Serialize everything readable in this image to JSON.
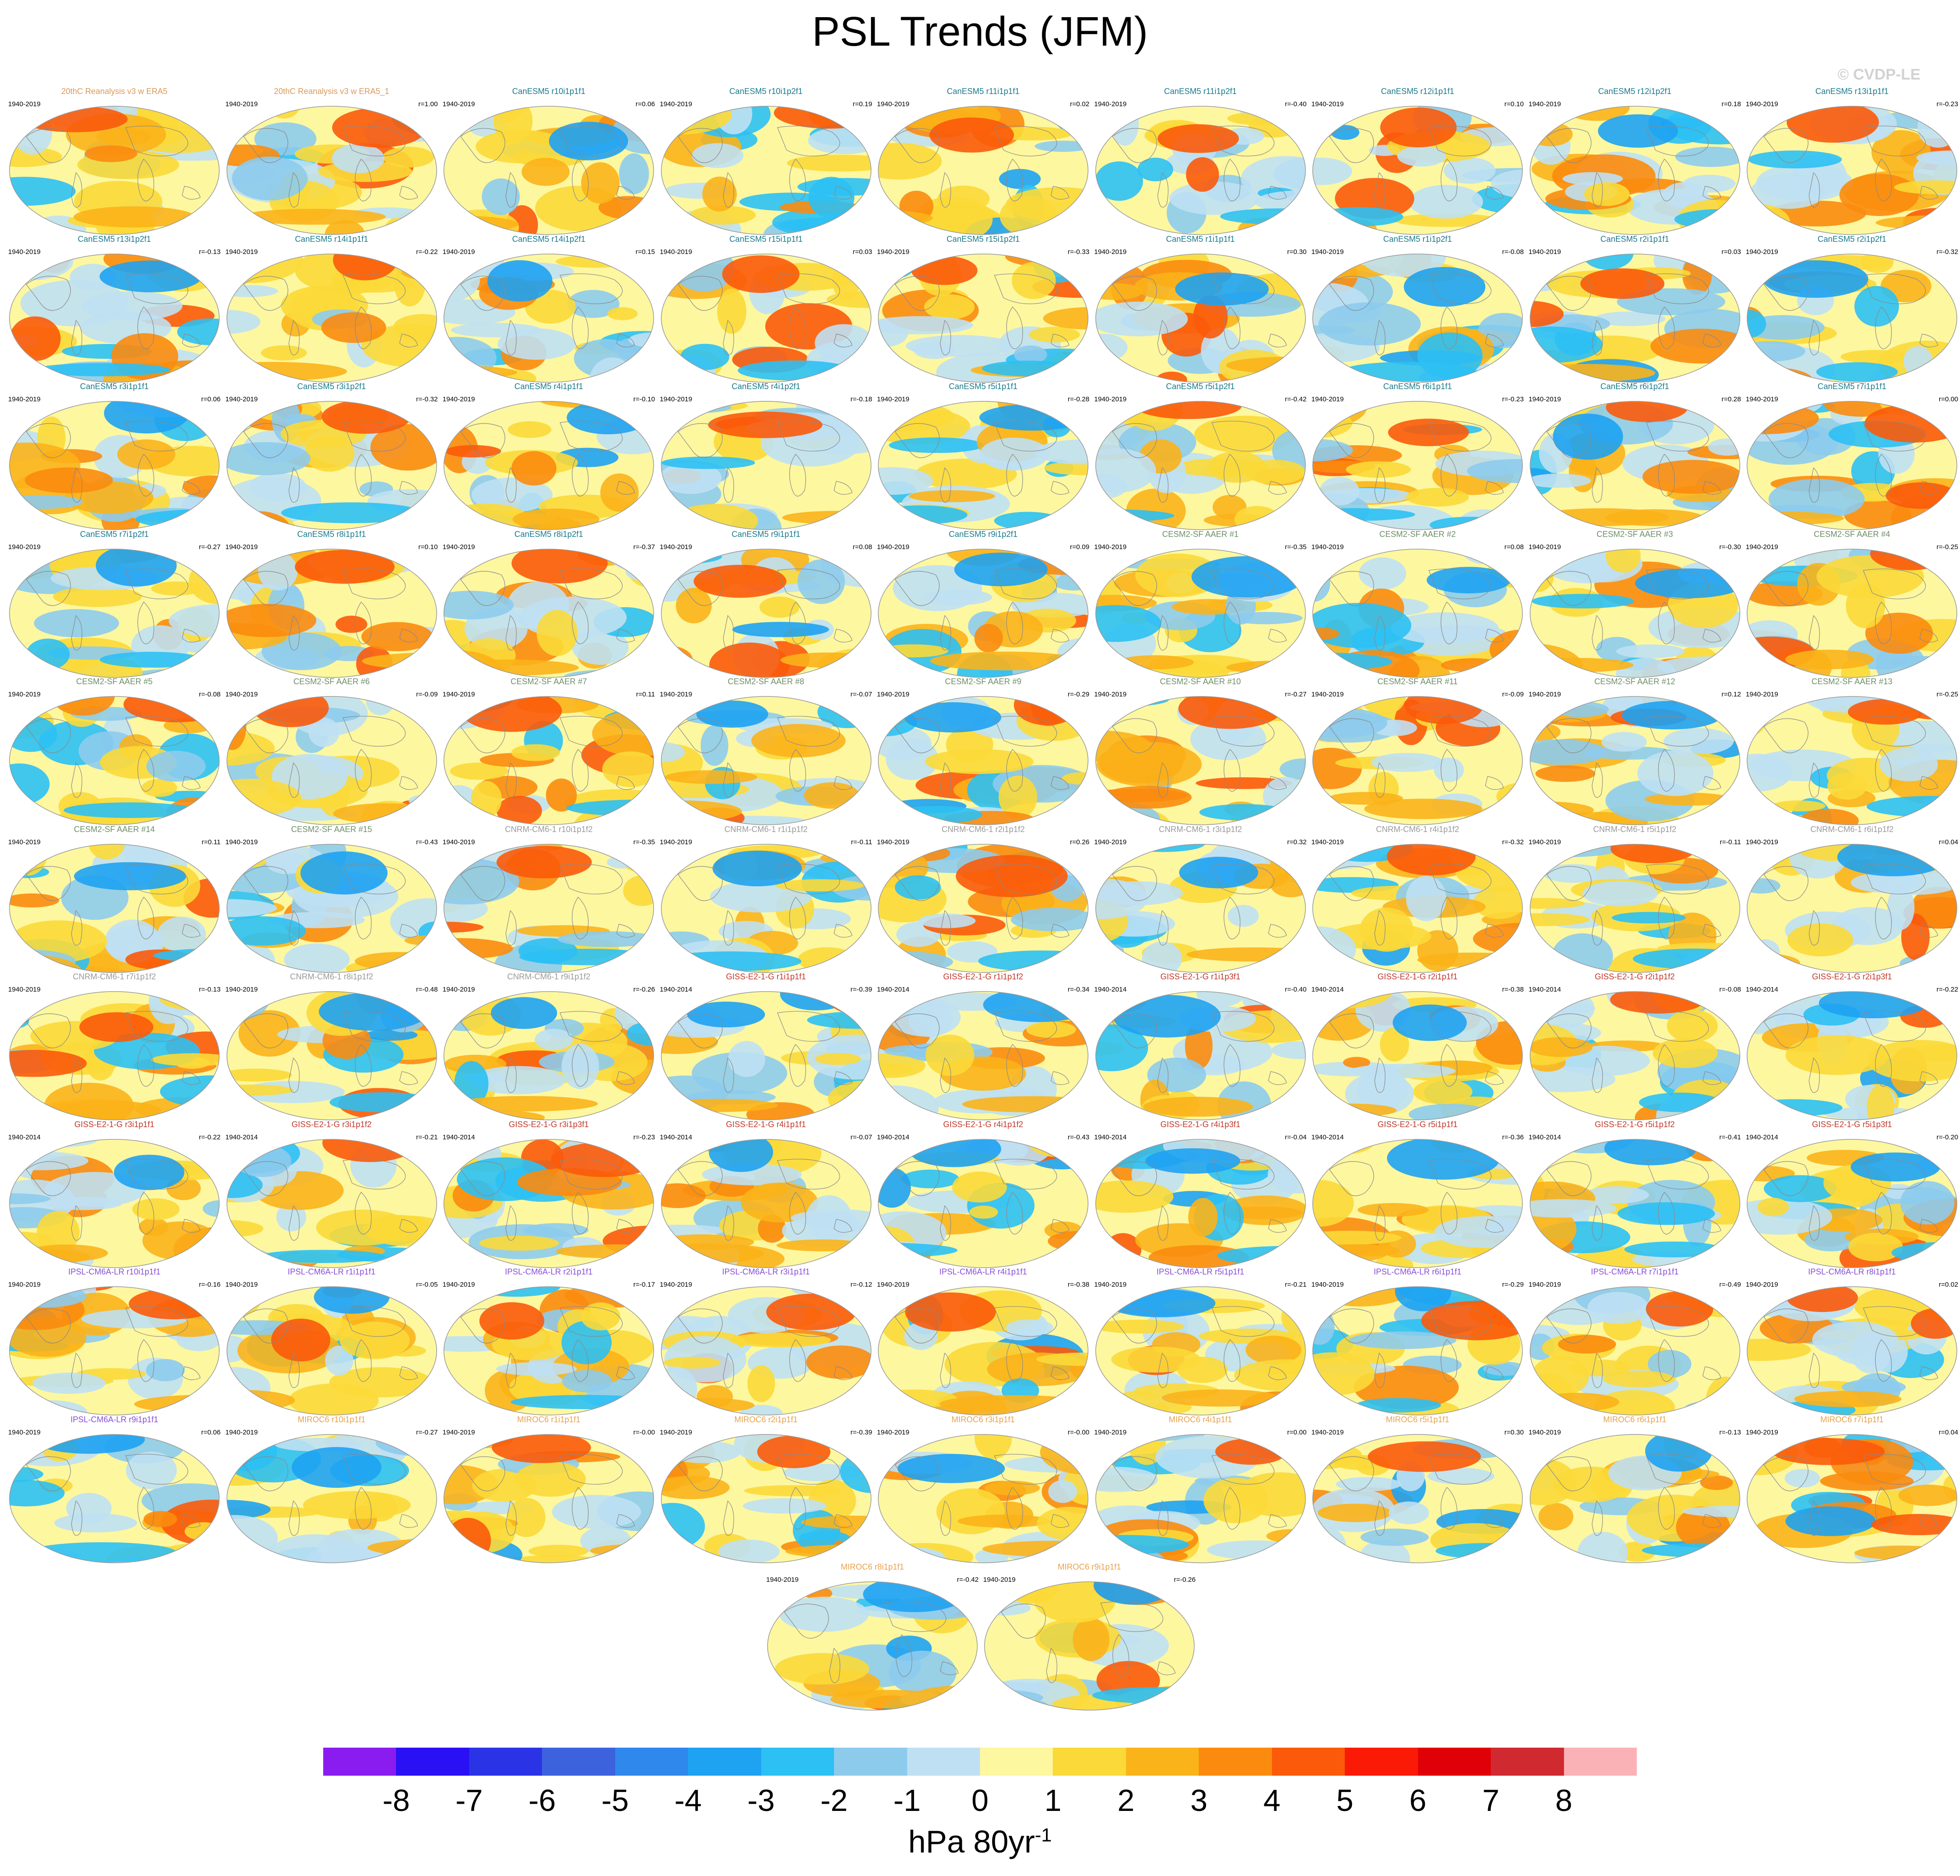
{
  "title": "PSL Trends (JFM)",
  "credit": "© CVDP-LE",
  "units_prefix": "hPa 80yr",
  "units_exponent": "-1",
  "group_colors": {
    "20thC": "#d99a5a",
    "CanESM5": "#1a7a8c",
    "CESM2": "#6f8f67",
    "CNRM": "#9a9a9a",
    "GISS": "#c0392b",
    "IPSL": "#8a4fd6",
    "MIROC6": "#e8a24c"
  },
  "colorbar": {
    "ticks": [
      "-8",
      "-7",
      "-6",
      "-5",
      "-4",
      "-3",
      "-2",
      "-1",
      "0",
      "1",
      "2",
      "3",
      "4",
      "5",
      "6",
      "7",
      "8"
    ],
    "colors": [
      "#8a1cf0",
      "#2a10f5",
      "#2a34e6",
      "#3c62de",
      "#2f88ec",
      "#1ea2f2",
      "#2cc0f4",
      "#8dcbed",
      "#bfe0f3",
      "#fdf7a0",
      "#fbd938",
      "#fbb31a",
      "#fb8b0e",
      "#fb5a0a",
      "#fb1a06",
      "#e00008",
      "#d02a30",
      "#fbb2b6"
    ]
  },
  "chart_data": {
    "type": "heatmap",
    "title": "PSL Trends (JFM)",
    "colorbar_label": "hPa 80yr-1",
    "levels": [
      -8,
      -7,
      -6,
      -5,
      -4,
      -3,
      -2,
      -1,
      0,
      1,
      2,
      3,
      4,
      5,
      6,
      7,
      8
    ],
    "panels": [
      {
        "name": "20thC Reanalysis v3 w ERA5",
        "period": "1940-2019",
        "r": "",
        "group": "20thC"
      },
      {
        "name": "20thC Reanalysis v3 w ERA5_1",
        "period": "1940-2019",
        "r": "r=1.00",
        "group": "20thC"
      },
      {
        "name": "CanESM5 r10i1p1f1",
        "period": "1940-2019",
        "r": "r=0.06",
        "group": "CanESM5"
      },
      {
        "name": "CanESM5 r10i1p2f1",
        "period": "1940-2019",
        "r": "r=0.19",
        "group": "CanESM5"
      },
      {
        "name": "CanESM5 r11i1p1f1",
        "period": "1940-2019",
        "r": "r=0.02",
        "group": "CanESM5"
      },
      {
        "name": "CanESM5 r11i1p2f1",
        "period": "1940-2019",
        "r": "r=-0.40",
        "group": "CanESM5"
      },
      {
        "name": "CanESM5 r12i1p1f1",
        "period": "1940-2019",
        "r": "r=0.10",
        "group": "CanESM5"
      },
      {
        "name": "CanESM5 r12i1p2f1",
        "period": "1940-2019",
        "r": "r=0.18",
        "group": "CanESM5"
      },
      {
        "name": "CanESM5 r13i1p1f1",
        "period": "1940-2019",
        "r": "r=-0.23",
        "group": "CanESM5"
      },
      {
        "name": "CanESM5 r13i1p2f1",
        "period": "1940-2019",
        "r": "r=-0.13",
        "group": "CanESM5"
      },
      {
        "name": "CanESM5 r14i1p1f1",
        "period": "1940-2019",
        "r": "r=-0.22",
        "group": "CanESM5"
      },
      {
        "name": "CanESM5 r14i1p2f1",
        "period": "1940-2019",
        "r": "r=0.15",
        "group": "CanESM5"
      },
      {
        "name": "CanESM5 r15i1p1f1",
        "period": "1940-2019",
        "r": "r=0.03",
        "group": "CanESM5"
      },
      {
        "name": "CanESM5 r15i1p2f1",
        "period": "1940-2019",
        "r": "r=-0.33",
        "group": "CanESM5"
      },
      {
        "name": "CanESM5 r1i1p1f1",
        "period": "1940-2019",
        "r": "r=0.30",
        "group": "CanESM5"
      },
      {
        "name": "CanESM5 r1i1p2f1",
        "period": "1940-2019",
        "r": "r=-0.08",
        "group": "CanESM5"
      },
      {
        "name": "CanESM5 r2i1p1f1",
        "period": "1940-2019",
        "r": "r=0.03",
        "group": "CanESM5"
      },
      {
        "name": "CanESM5 r2i1p2f1",
        "period": "1940-2019",
        "r": "r=-0.32",
        "group": "CanESM5"
      },
      {
        "name": "CanESM5 r3i1p1f1",
        "period": "1940-2019",
        "r": "r=0.06",
        "group": "CanESM5"
      },
      {
        "name": "CanESM5 r3i1p2f1",
        "period": "1940-2019",
        "r": "r=-0.32",
        "group": "CanESM5"
      },
      {
        "name": "CanESM5 r4i1p1f1",
        "period": "1940-2019",
        "r": "r=-0.10",
        "group": "CanESM5"
      },
      {
        "name": "CanESM5 r4i1p2f1",
        "period": "1940-2019",
        "r": "r=-0.18",
        "group": "CanESM5"
      },
      {
        "name": "CanESM5 r5i1p1f1",
        "period": "1940-2019",
        "r": "r=-0.28",
        "group": "CanESM5"
      },
      {
        "name": "CanESM5 r5i1p2f1",
        "period": "1940-2019",
        "r": "r=-0.42",
        "group": "CanESM5"
      },
      {
        "name": "CanESM5 r6i1p1f1",
        "period": "1940-2019",
        "r": "r=-0.23",
        "group": "CanESM5"
      },
      {
        "name": "CanESM5 r6i1p2f1",
        "period": "1940-2019",
        "r": "r=0.28",
        "group": "CanESM5"
      },
      {
        "name": "CanESM5 r7i1p1f1",
        "period": "1940-2019",
        "r": "r=0.00",
        "group": "CanESM5"
      },
      {
        "name": "CanESM5 r7i1p2f1",
        "period": "1940-2019",
        "r": "r=-0.27",
        "group": "CanESM5"
      },
      {
        "name": "CanESM5 r8i1p1f1",
        "period": "1940-2019",
        "r": "r=0.10",
        "group": "CanESM5"
      },
      {
        "name": "CanESM5 r8i1p2f1",
        "period": "1940-2019",
        "r": "r=-0.37",
        "group": "CanESM5"
      },
      {
        "name": "CanESM5 r9i1p1f1",
        "period": "1940-2019",
        "r": "r=0.08",
        "group": "CanESM5"
      },
      {
        "name": "CanESM5 r9i1p2f1",
        "period": "1940-2019",
        "r": "r=0.09",
        "group": "CanESM5"
      },
      {
        "name": "CESM2-SF AAER #1",
        "period": "1940-2019",
        "r": "r=-0.35",
        "group": "CESM2"
      },
      {
        "name": "CESM2-SF AAER #2",
        "period": "1940-2019",
        "r": "r=0.08",
        "group": "CESM2"
      },
      {
        "name": "CESM2-SF AAER #3",
        "period": "1940-2019",
        "r": "r=-0.30",
        "group": "CESM2"
      },
      {
        "name": "CESM2-SF AAER #4",
        "period": "1940-2019",
        "r": "r=-0.25",
        "group": "CESM2"
      },
      {
        "name": "CESM2-SF AAER #5",
        "period": "1940-2019",
        "r": "r=-0.08",
        "group": "CESM2"
      },
      {
        "name": "CESM2-SF AAER #6",
        "period": "1940-2019",
        "r": "r=-0.09",
        "group": "CESM2"
      },
      {
        "name": "CESM2-SF AAER #7",
        "period": "1940-2019",
        "r": "r=0.11",
        "group": "CESM2"
      },
      {
        "name": "CESM2-SF AAER #8",
        "period": "1940-2019",
        "r": "r=-0.07",
        "group": "CESM2"
      },
      {
        "name": "CESM2-SF AAER #9",
        "period": "1940-2019",
        "r": "r=-0.29",
        "group": "CESM2"
      },
      {
        "name": "CESM2-SF AAER #10",
        "period": "1940-2019",
        "r": "r=-0.27",
        "group": "CESM2"
      },
      {
        "name": "CESM2-SF AAER #11",
        "period": "1940-2019",
        "r": "r=-0.09",
        "group": "CESM2"
      },
      {
        "name": "CESM2-SF AAER #12",
        "period": "1940-2019",
        "r": "r=0.12",
        "group": "CESM2"
      },
      {
        "name": "CESM2-SF AAER #13",
        "period": "1940-2019",
        "r": "r=-0.25",
        "group": "CESM2"
      },
      {
        "name": "CESM2-SF AAER #14",
        "period": "1940-2019",
        "r": "r=0.11",
        "group": "CESM2"
      },
      {
        "name": "CESM2-SF AAER #15",
        "period": "1940-2019",
        "r": "r=-0.43",
        "group": "CESM2"
      },
      {
        "name": "CNRM-CM6-1 r10i1p1f2",
        "period": "1940-2019",
        "r": "r=-0.35",
        "group": "CNRM"
      },
      {
        "name": "CNRM-CM6-1 r1i1p1f2",
        "period": "1940-2019",
        "r": "r=-0.11",
        "group": "CNRM"
      },
      {
        "name": "CNRM-CM6-1 r2i1p1f2",
        "period": "1940-2019",
        "r": "r=0.26",
        "group": "CNRM"
      },
      {
        "name": "CNRM-CM6-1 r3i1p1f2",
        "period": "1940-2019",
        "r": "r=0.32",
        "group": "CNRM"
      },
      {
        "name": "CNRM-CM6-1 r4i1p1f2",
        "period": "1940-2019",
        "r": "r=-0.32",
        "group": "CNRM"
      },
      {
        "name": "CNRM-CM6-1 r5i1p1f2",
        "period": "1940-2019",
        "r": "r=-0.11",
        "group": "CNRM"
      },
      {
        "name": "CNRM-CM6-1 r6i1p1f2",
        "period": "1940-2019",
        "r": "r=0.04",
        "group": "CNRM"
      },
      {
        "name": "CNRM-CM6-1 r7i1p1f2",
        "period": "1940-2019",
        "r": "r=-0.13",
        "group": "CNRM"
      },
      {
        "name": "CNRM-CM6-1 r8i1p1f2",
        "period": "1940-2019",
        "r": "r=-0.48",
        "group": "CNRM"
      },
      {
        "name": "CNRM-CM6-1 r9i1p1f2",
        "period": "1940-2019",
        "r": "r=-0.26",
        "group": "CNRM"
      },
      {
        "name": "GISS-E2-1-G r1i1p1f1",
        "period": "1940-2014",
        "r": "r=-0.39",
        "group": "GISS"
      },
      {
        "name": "GISS-E2-1-G r1i1p1f2",
        "period": "1940-2014",
        "r": "r=-0.34",
        "group": "GISS"
      },
      {
        "name": "GISS-E2-1-G r1i1p3f1",
        "period": "1940-2014",
        "r": "r=-0.40",
        "group": "GISS"
      },
      {
        "name": "GISS-E2-1-G r2i1p1f1",
        "period": "1940-2014",
        "r": "r=-0.38",
        "group": "GISS"
      },
      {
        "name": "GISS-E2-1-G r2i1p1f2",
        "period": "1940-2014",
        "r": "r=-0.08",
        "group": "GISS"
      },
      {
        "name": "GISS-E2-1-G r2i1p3f1",
        "period": "1940-2014",
        "r": "r=-0.22",
        "group": "GISS"
      },
      {
        "name": "GISS-E2-1-G r3i1p1f1",
        "period": "1940-2014",
        "r": "r=-0.22",
        "group": "GISS"
      },
      {
        "name": "GISS-E2-1-G r3i1p1f2",
        "period": "1940-2014",
        "r": "r=-0.21",
        "group": "GISS"
      },
      {
        "name": "GISS-E2-1-G r3i1p3f1",
        "period": "1940-2014",
        "r": "r=-0.23",
        "group": "GISS"
      },
      {
        "name": "GISS-E2-1-G r4i1p1f1",
        "period": "1940-2014",
        "r": "r=-0.07",
        "group": "GISS"
      },
      {
        "name": "GISS-E2-1-G r4i1p1f2",
        "period": "1940-2014",
        "r": "r=-0.43",
        "group": "GISS"
      },
      {
        "name": "GISS-E2-1-G r4i1p3f1",
        "period": "1940-2014",
        "r": "r=-0.04",
        "group": "GISS"
      },
      {
        "name": "GISS-E2-1-G r5i1p1f1",
        "period": "1940-2014",
        "r": "r=-0.36",
        "group": "GISS"
      },
      {
        "name": "GISS-E2-1-G r5i1p1f2",
        "period": "1940-2014",
        "r": "r=-0.41",
        "group": "GISS"
      },
      {
        "name": "GISS-E2-1-G r5i1p3f1",
        "period": "1940-2014",
        "r": "r=-0.20",
        "group": "GISS"
      },
      {
        "name": "IPSL-CM6A-LR r10i1p1f1",
        "period": "1940-2019",
        "r": "r=-0.16",
        "group": "IPSL"
      },
      {
        "name": "IPSL-CM6A-LR r1i1p1f1",
        "period": "1940-2019",
        "r": "r=-0.05",
        "group": "IPSL"
      },
      {
        "name": "IPSL-CM6A-LR r2i1p1f1",
        "period": "1940-2019",
        "r": "r=-0.17",
        "group": "IPSL"
      },
      {
        "name": "IPSL-CM6A-LR r3i1p1f1",
        "period": "1940-2019",
        "r": "r=-0.12",
        "group": "IPSL"
      },
      {
        "name": "IPSL-CM6A-LR r4i1p1f1",
        "period": "1940-2019",
        "r": "r=-0.38",
        "group": "IPSL"
      },
      {
        "name": "IPSL-CM6A-LR r5i1p1f1",
        "period": "1940-2019",
        "r": "r=-0.21",
        "group": "IPSL"
      },
      {
        "name": "IPSL-CM6A-LR r6i1p1f1",
        "period": "1940-2019",
        "r": "r=-0.29",
        "group": "IPSL"
      },
      {
        "name": "IPSL-CM6A-LR r7i1p1f1",
        "period": "1940-2019",
        "r": "r=-0.49",
        "group": "IPSL"
      },
      {
        "name": "IPSL-CM6A-LR r8i1p1f1",
        "period": "1940-2019",
        "r": "r=0.02",
        "group": "IPSL"
      },
      {
        "name": "IPSL-CM6A-LR r9i1p1f1",
        "period": "1940-2019",
        "r": "r=0.06",
        "group": "IPSL"
      },
      {
        "name": "MIROC6 r10i1p1f1",
        "period": "1940-2019",
        "r": "r=-0.27",
        "group": "MIROC6"
      },
      {
        "name": "MIROC6 r1i1p1f1",
        "period": "1940-2019",
        "r": "r=-0.00",
        "group": "MIROC6"
      },
      {
        "name": "MIROC6 r2i1p1f1",
        "period": "1940-2019",
        "r": "r=-0.39",
        "group": "MIROC6"
      },
      {
        "name": "MIROC6 r3i1p1f1",
        "period": "1940-2019",
        "r": "r=-0.00",
        "group": "MIROC6"
      },
      {
        "name": "MIROC6 r4i1p1f1",
        "period": "1940-2019",
        "r": "r=0.00",
        "group": "MIROC6"
      },
      {
        "name": "MIROC6 r5i1p1f1",
        "period": "1940-2019",
        "r": "r=0.30",
        "group": "MIROC6"
      },
      {
        "name": "MIROC6 r6i1p1f1",
        "period": "1940-2019",
        "r": "r=-0.13",
        "group": "MIROC6"
      },
      {
        "name": "MIROC6 r7i1p1f1",
        "period": "1940-2019",
        "r": "r=0.04",
        "group": "MIROC6"
      },
      {
        "name": "MIROC6 r8i1p1f1",
        "period": "1940-2019",
        "r": "r=-0.42",
        "group": "MIROC6"
      },
      {
        "name": "MIROC6 r9i1p1f1",
        "period": "1940-2019",
        "r": "r=-0.26",
        "group": "MIROC6"
      }
    ]
  }
}
